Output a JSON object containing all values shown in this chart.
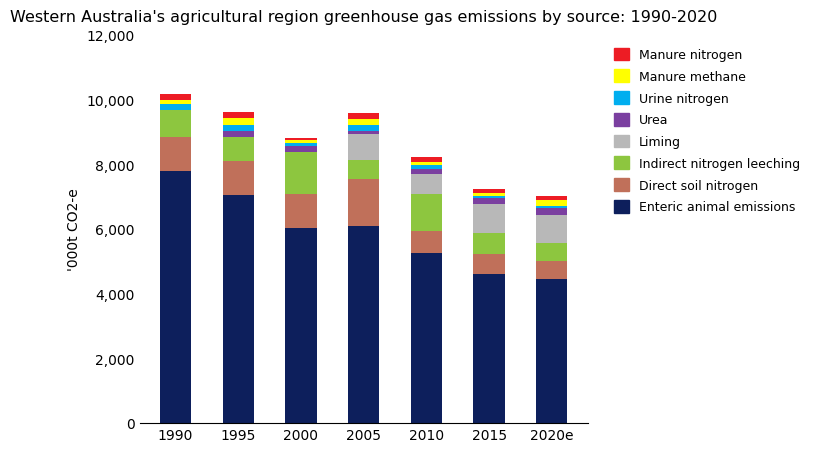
{
  "title": "Western Australia's agricultural region greenhouse gas emissions by source: 1990-2020",
  "ylabel": "'000t CO2-e",
  "categories": [
    "1990",
    "1995",
    "2000",
    "2005",
    "2010",
    "2015",
    "2020e"
  ],
  "ylim": [
    0,
    12000
  ],
  "yticks": [
    0,
    2000,
    4000,
    6000,
    8000,
    10000,
    12000
  ],
  "series": {
    "Enteric animal emissions": {
      "values": [
        7800,
        7050,
        6050,
        6100,
        5250,
        4600,
        4450
      ],
      "color": "#0d1f5c"
    },
    "Direct soil nitrogen": {
      "values": [
        1050,
        1050,
        1050,
        1450,
        700,
        620,
        580
      ],
      "color": "#c0705a"
    },
    "Indirect nitrogen leeching": {
      "values": [
        850,
        750,
        1300,
        600,
        1150,
        650,
        550
      ],
      "color": "#8dc63f"
    },
    "Liming": {
      "values": [
        0,
        0,
        0,
        800,
        600,
        900,
        850
      ],
      "color": "#b8b8b8"
    },
    "Urea": {
      "values": [
        0,
        180,
        180,
        90,
        170,
        180,
        220
      ],
      "color": "#7b3fa0"
    },
    "Urine nitrogen": {
      "values": [
        180,
        180,
        90,
        180,
        120,
        90,
        80
      ],
      "color": "#00aeef"
    },
    "Manure methane": {
      "values": [
        100,
        220,
        90,
        180,
        90,
        90,
        180
      ],
      "color": "#ffff00"
    },
    "Manure nitrogen": {
      "values": [
        200,
        200,
        50,
        200,
        150,
        100,
        100
      ],
      "color": "#ed1c24"
    }
  },
  "legend_order": [
    "Manure nitrogen",
    "Manure methane",
    "Urine nitrogen",
    "Urea",
    "Liming",
    "Indirect nitrogen leeching",
    "Direct soil nitrogen",
    "Enteric animal emissions"
  ],
  "bar_width": 0.5,
  "background_color": "#ffffff",
  "title_fontsize": 11.5,
  "axis_fontsize": 10,
  "tick_fontsize": 10
}
